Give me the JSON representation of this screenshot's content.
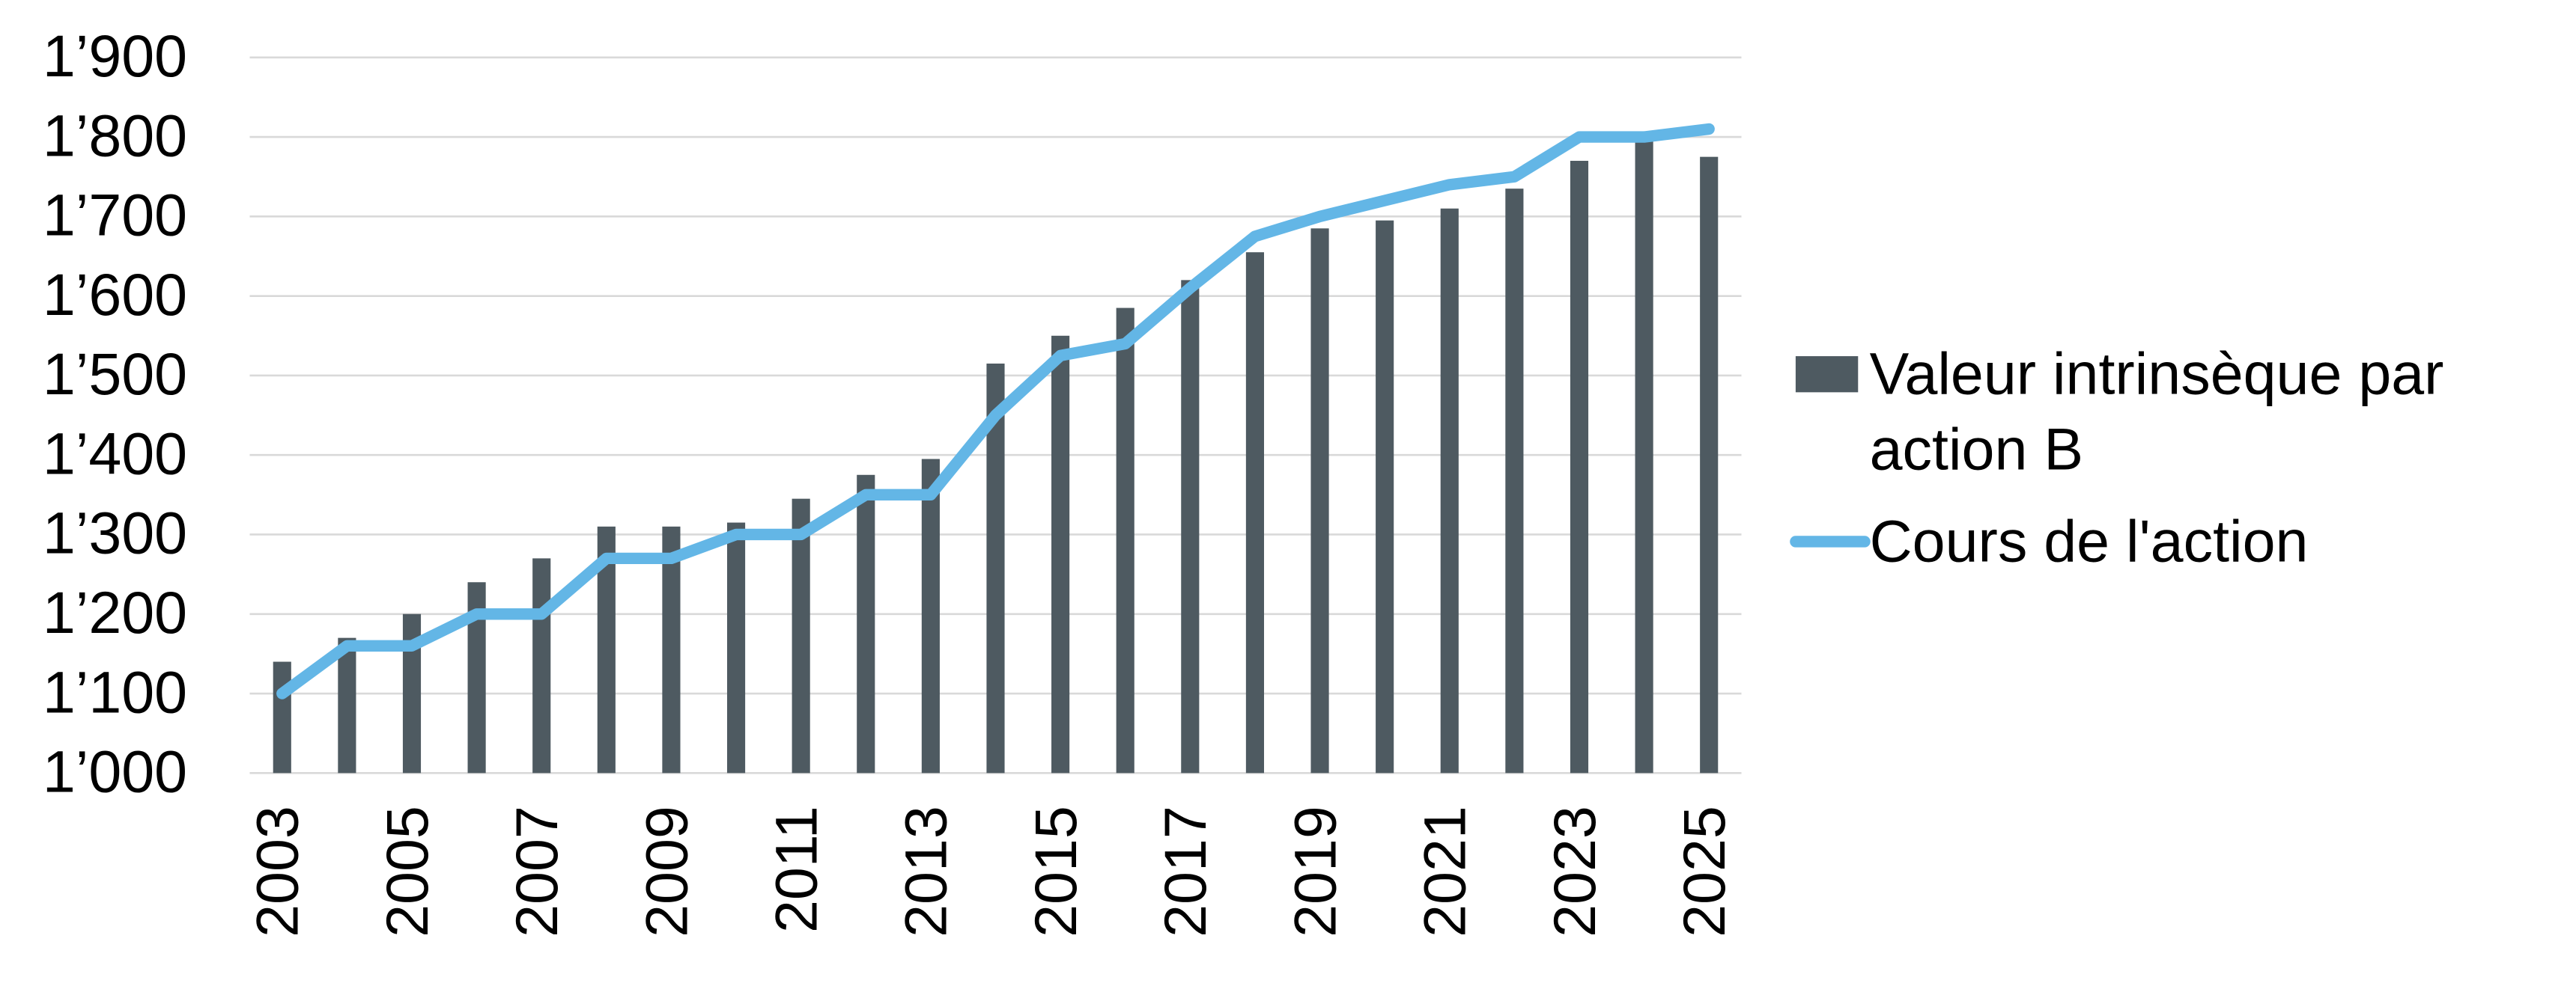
{
  "chart_data": {
    "type": "bar-line",
    "categories": [
      "2003",
      null,
      "2005",
      null,
      "2007",
      null,
      "2009",
      null,
      "2011",
      null,
      "2013",
      null,
      "2015",
      null,
      "2017",
      null,
      "2019",
      null,
      "2021",
      null,
      "2023",
      null,
      "2025"
    ],
    "series": [
      {
        "name": "Valeur intrinsèque par action B",
        "type": "bar",
        "color": "#4e5a61",
        "values": [
          1140,
          1170,
          1200,
          1240,
          1270,
          1310,
          1310,
          1315,
          1345,
          1375,
          1395,
          1515,
          1550,
          1585,
          1620,
          1655,
          1685,
          1695,
          1710,
          1735,
          1770,
          1795,
          1775
        ]
      },
      {
        "name": "Cours de l'action",
        "type": "line",
        "color": "#63b6e6",
        "values": [
          1100,
          1160,
          1160,
          1200,
          1200,
          1270,
          1270,
          1300,
          1300,
          1350,
          1350,
          1450,
          1525,
          1540,
          1610,
          1675,
          1700,
          1720,
          1740,
          1750,
          1800,
          1800,
          1810
        ]
      }
    ],
    "ylim": [
      1000,
      1900
    ],
    "yticks": [
      {
        "value": 1000,
        "label": "1’000"
      },
      {
        "value": 1100,
        "label": "1’100"
      },
      {
        "value": 1200,
        "label": "1’200"
      },
      {
        "value": 1300,
        "label": "1’300"
      },
      {
        "value": 1400,
        "label": "1’400"
      },
      {
        "value": 1500,
        "label": "1’500"
      },
      {
        "value": 1600,
        "label": "1’600"
      },
      {
        "value": 1700,
        "label": "1’700"
      },
      {
        "value": 1800,
        "label": "1’800"
      },
      {
        "value": 1900,
        "label": "1’900"
      }
    ],
    "grid": true,
    "legend": "right"
  }
}
